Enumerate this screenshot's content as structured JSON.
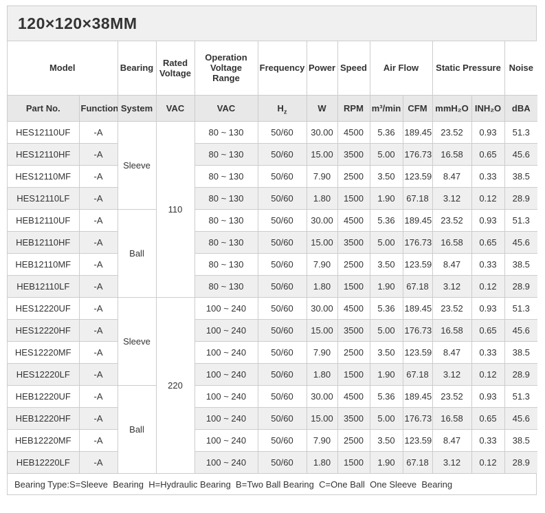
{
  "title": "120×120×38MM",
  "table": {
    "header_groups": [
      {
        "label": "Model"
      },
      {
        "label": "Bearing"
      },
      {
        "label": "Rated Voltage"
      },
      {
        "label": "Operation Voltage Range"
      },
      {
        "label": "Frequency"
      },
      {
        "label": "Power"
      },
      {
        "label": "Speed"
      },
      {
        "label": "Air Flow"
      },
      {
        "label": "Static Pressure"
      },
      {
        "label": "Noise"
      }
    ],
    "subheaders": {
      "part_no": "Part No.",
      "function": "Function",
      "system": "System",
      "rated_vac": "VAC",
      "op_vac": "VAC",
      "freq_base": "H",
      "freq_sub": "z",
      "power": "W",
      "speed": "RPM",
      "airflow_m3": "m³/min",
      "airflow_cfm": "CFM",
      "sp_mmh2o": "mmH₂O",
      "sp_inh2o": "INH₂O",
      "noise": "dBA"
    },
    "rows": [
      {
        "part_no": "HES12110UF",
        "function": "-A",
        "bearing": "Sleeve",
        "bearing_span": 4,
        "rated": "110",
        "rated_span": 8,
        "op": "80 ~ 130",
        "freq": "50/60",
        "power": "30.00",
        "speed": "4500",
        "m3min": "5.36",
        "cfm": "189.45",
        "mmh2o": "23.52",
        "inh2o": "0.93",
        "dba": "51.3"
      },
      {
        "part_no": "HES12110HF",
        "function": "-A",
        "op": "80 ~ 130",
        "freq": "50/60",
        "power": "15.00",
        "speed": "3500",
        "m3min": "5.00",
        "cfm": "176.73",
        "mmh2o": "16.58",
        "inh2o": "0.65",
        "dba": "45.6"
      },
      {
        "part_no": "HES12110MF",
        "function": "-A",
        "op": "80 ~ 130",
        "freq": "50/60",
        "power": "7.90",
        "speed": "2500",
        "m3min": "3.50",
        "cfm": "123.59",
        "mmh2o": "8.47",
        "inh2o": "0.33",
        "dba": "38.5"
      },
      {
        "part_no": "HES12110LF",
        "function": "-A",
        "op": "80 ~ 130",
        "freq": "50/60",
        "power": "1.80",
        "speed": "1500",
        "m3min": "1.90",
        "cfm": "67.18",
        "mmh2o": "3.12",
        "inh2o": "0.12",
        "dba": "28.9"
      },
      {
        "part_no": "HEB12110UF",
        "function": "-A",
        "bearing": "Ball",
        "bearing_span": 4,
        "op": "80 ~ 130",
        "freq": "50/60",
        "power": "30.00",
        "speed": "4500",
        "m3min": "5.36",
        "cfm": "189.45",
        "mmh2o": "23.52",
        "inh2o": "0.93",
        "dba": "51.3"
      },
      {
        "part_no": "HEB12110HF",
        "function": "-A",
        "op": "80 ~ 130",
        "freq": "50/60",
        "power": "15.00",
        "speed": "3500",
        "m3min": "5.00",
        "cfm": "176.73",
        "mmh2o": "16.58",
        "inh2o": "0.65",
        "dba": "45.6"
      },
      {
        "part_no": "HEB12110MF",
        "function": "-A",
        "op": "80 ~ 130",
        "freq": "50/60",
        "power": "7.90",
        "speed": "2500",
        "m3min": "3.50",
        "cfm": "123.59",
        "mmh2o": "8.47",
        "inh2o": "0.33",
        "dba": "38.5"
      },
      {
        "part_no": "HEB12110LF",
        "function": "-A",
        "op": "80 ~ 130",
        "freq": "50/60",
        "power": "1.80",
        "speed": "1500",
        "m3min": "1.90",
        "cfm": "67.18",
        "mmh2o": "3.12",
        "inh2o": "0.12",
        "dba": "28.9"
      },
      {
        "part_no": "HES12220UF",
        "function": "-A",
        "bearing": "Sleeve",
        "bearing_span": 4,
        "rated": "220",
        "rated_span": 8,
        "op": "100 ~ 240",
        "freq": "50/60",
        "power": "30.00",
        "speed": "4500",
        "m3min": "5.36",
        "cfm": "189.45",
        "mmh2o": "23.52",
        "inh2o": "0.93",
        "dba": "51.3"
      },
      {
        "part_no": "HES12220HF",
        "function": "-A",
        "op": "100 ~ 240",
        "freq": "50/60",
        "power": "15.00",
        "speed": "3500",
        "m3min": "5.00",
        "cfm": "176.73",
        "mmh2o": "16.58",
        "inh2o": "0.65",
        "dba": "45.6"
      },
      {
        "part_no": "HES12220MF",
        "function": "-A",
        "op": "100 ~ 240",
        "freq": "50/60",
        "power": "7.90",
        "speed": "2500",
        "m3min": "3.50",
        "cfm": "123.59",
        "mmh2o": "8.47",
        "inh2o": "0.33",
        "dba": "38.5"
      },
      {
        "part_no": "HES12220LF",
        "function": "-A",
        "op": "100 ~ 240",
        "freq": "50/60",
        "power": "1.80",
        "speed": "1500",
        "m3min": "1.90",
        "cfm": "67.18",
        "mmh2o": "3.12",
        "inh2o": "0.12",
        "dba": "28.9"
      },
      {
        "part_no": "HEB12220UF",
        "function": "-A",
        "bearing": "Ball",
        "bearing_span": 4,
        "op": "100 ~ 240",
        "freq": "50/60",
        "power": "30.00",
        "speed": "4500",
        "m3min": "5.36",
        "cfm": "189.45",
        "mmh2o": "23.52",
        "inh2o": "0.93",
        "dba": "51.3"
      },
      {
        "part_no": "HEB12220HF",
        "function": "-A",
        "op": "100 ~ 240",
        "freq": "50/60",
        "power": "15.00",
        "speed": "3500",
        "m3min": "5.00",
        "cfm": "176.73",
        "mmh2o": "16.58",
        "inh2o": "0.65",
        "dba": "45.6"
      },
      {
        "part_no": "HEB12220MF",
        "function": "-A",
        "op": "100 ~ 240",
        "freq": "50/60",
        "power": "7.90",
        "speed": "2500",
        "m3min": "3.50",
        "cfm": "123.59",
        "mmh2o": "8.47",
        "inh2o": "0.33",
        "dba": "38.5"
      },
      {
        "part_no": "HEB12220LF",
        "function": "-A",
        "op": "100 ~ 240",
        "freq": "50/60",
        "power": "1.80",
        "speed": "1500",
        "m3min": "1.90",
        "cfm": "67.18",
        "mmh2o": "3.12",
        "inh2o": "0.12",
        "dba": "28.9"
      }
    ]
  },
  "footer_note": "Bearing Type:S=Sleeve  Bearing  H=Hydraulic Bearing  B=Two Ball Bearing  C=One Ball  One Sleeve  Bearing",
  "colors": {
    "border": "#cccccc",
    "title_bg": "#f0f0f0",
    "subheader_bg": "#e8e8e8",
    "stripe_bg": "#efefef",
    "text": "#333333"
  }
}
